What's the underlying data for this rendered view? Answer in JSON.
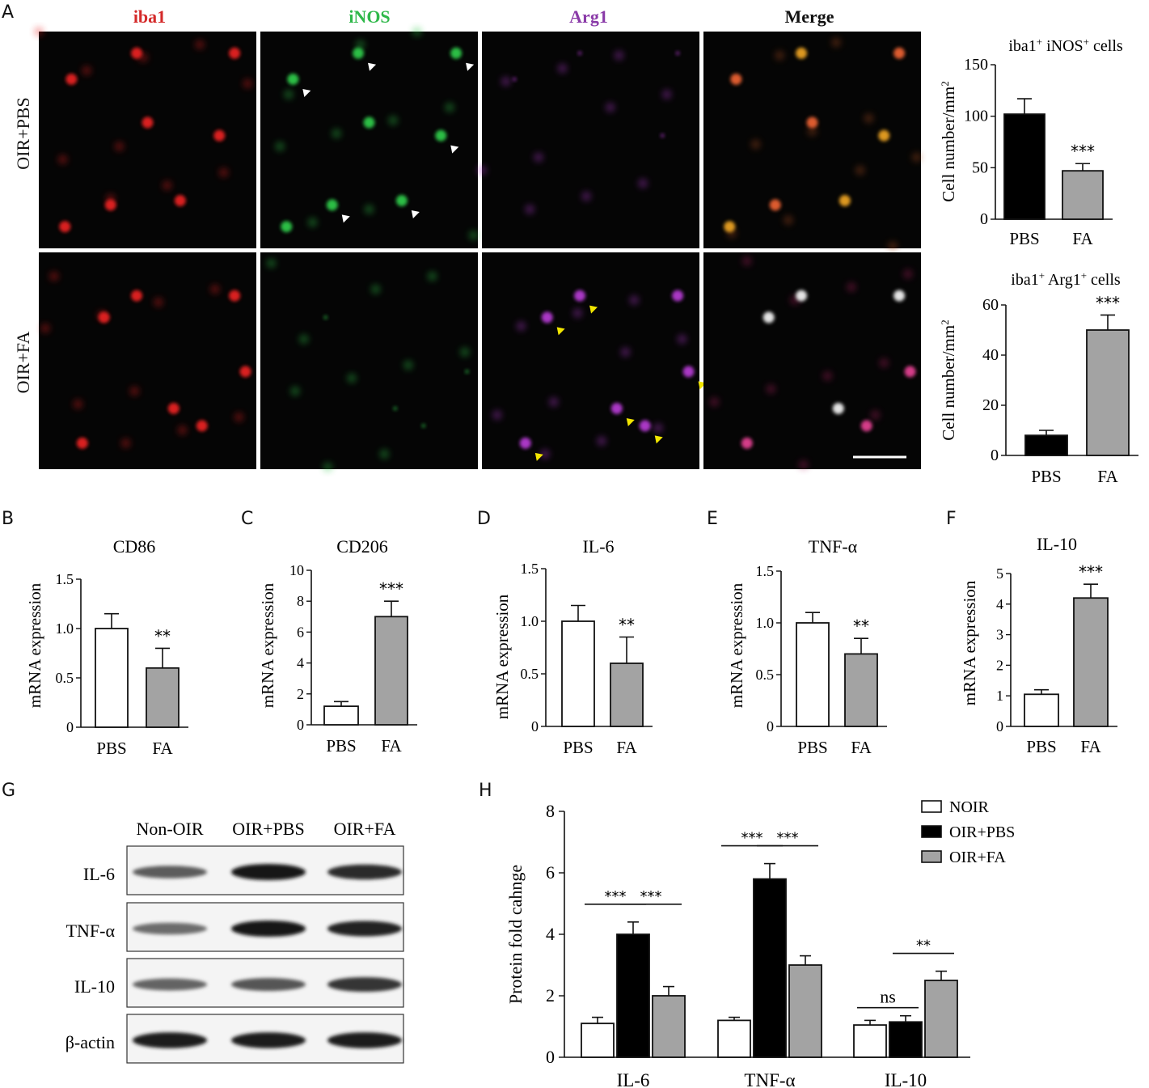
{
  "panel_letters": [
    "A",
    "B",
    "C",
    "D",
    "E",
    "F",
    "G",
    "H"
  ],
  "micro": {
    "column_labels": [
      {
        "text": "iba1",
        "color": "#d42a2a"
      },
      {
        "text": "iNOS",
        "color": "#2fb84a"
      },
      {
        "text": "Arg1",
        "color": "#8a3aa8"
      },
      {
        "text": "Merge",
        "color": "#111111"
      }
    ],
    "row_labels": [
      "OIR+PBS",
      "OIR+FA"
    ],
    "arrowhead_colors": {
      "iNOS": "#ffffff",
      "Arg1": "#f2e600"
    },
    "background": "#050505"
  },
  "blot": {
    "lanes": [
      "Non-OIR",
      "OIR+PBS",
      "OIR+FA"
    ],
    "rows": [
      {
        "label": "IL-6",
        "band_intensity": [
          0.55,
          1.0,
          0.85
        ]
      },
      {
        "label": "TNF-α",
        "band_intensity": [
          0.45,
          1.0,
          0.9
        ]
      },
      {
        "label": "IL-10",
        "band_intensity": [
          0.5,
          0.6,
          0.8
        ]
      },
      {
        "label": "β-actin",
        "band_intensity": [
          0.95,
          0.95,
          0.95
        ]
      }
    ]
  },
  "chart_data": [
    {
      "id": "A1",
      "type": "bar",
      "title_parts": [
        "iba1",
        "+",
        " iNOS",
        "+",
        " cells"
      ],
      "ylabel_main": "Cell number/mm",
      "ylabel_sup": "2",
      "categories": [
        "PBS",
        "FA"
      ],
      "values": [
        102,
        47
      ],
      "errors": [
        15,
        7
      ],
      "colors": [
        "#000000",
        "#a3a3a3"
      ],
      "ylim": [
        0,
        150
      ],
      "yticks": [
        0,
        50,
        100,
        150
      ],
      "ytick_labels": [
        "0",
        "50",
        "100",
        "150"
      ],
      "sig": [
        {
          "text": "***",
          "bar": 1
        }
      ]
    },
    {
      "id": "A2",
      "type": "bar",
      "title_parts": [
        "iba1",
        "+",
        " Arg1",
        "+",
        " cells"
      ],
      "ylabel_main": "Cell number/mm",
      "ylabel_sup": "2",
      "categories": [
        "PBS",
        "FA"
      ],
      "values": [
        8,
        50
      ],
      "errors": [
        2,
        6
      ],
      "colors": [
        "#000000",
        "#a3a3a3"
      ],
      "ylim": [
        0,
        60
      ],
      "yticks": [
        0,
        20,
        40,
        60
      ],
      "ytick_labels": [
        "0",
        "20",
        "40",
        "60"
      ],
      "sig": [
        {
          "text": "***",
          "bar": 1
        }
      ]
    },
    {
      "id": "B",
      "type": "bar",
      "title": "CD86",
      "ylabel": "mRNA expression",
      "categories": [
        "PBS",
        "FA"
      ],
      "values": [
        1.0,
        0.6
      ],
      "errors": [
        0.15,
        0.2
      ],
      "colors": [
        "#ffffff",
        "#a3a3a3"
      ],
      "ylim": [
        0,
        1.5
      ],
      "yticks": [
        0,
        0.5,
        1.0,
        1.5
      ],
      "ytick_labels": [
        "0",
        "0.5",
        "1.0",
        "1.5"
      ],
      "sig": [
        {
          "text": "**",
          "bar": 1
        }
      ]
    },
    {
      "id": "C",
      "type": "bar",
      "title": "CD206",
      "ylabel": "mRNA expression",
      "categories": [
        "PBS",
        "FA"
      ],
      "values": [
        1.2,
        7.0
      ],
      "errors": [
        0.3,
        1.0
      ],
      "colors": [
        "#ffffff",
        "#a3a3a3"
      ],
      "ylim": [
        0,
        10
      ],
      "yticks": [
        0,
        2,
        4,
        6,
        8,
        10
      ],
      "ytick_labels": [
        "0",
        "2",
        "4",
        "6",
        "8",
        "10"
      ],
      "sig": [
        {
          "text": "***",
          "bar": 1
        }
      ]
    },
    {
      "id": "D",
      "type": "bar",
      "title": "IL-6",
      "ylabel": "mRNA expression",
      "categories": [
        "PBS",
        "FA"
      ],
      "values": [
        1.0,
        0.6
      ],
      "errors": [
        0.15,
        0.25
      ],
      "colors": [
        "#ffffff",
        "#a3a3a3"
      ],
      "ylim": [
        0,
        1.5
      ],
      "yticks": [
        0,
        0.5,
        1.0,
        1.5
      ],
      "ytick_labels": [
        "0",
        "0.5",
        "1.0",
        "1.5"
      ],
      "sig": [
        {
          "text": "**",
          "bar": 1
        }
      ]
    },
    {
      "id": "E",
      "type": "bar",
      "title": "TNF-α",
      "ylabel": "mRNA expression",
      "categories": [
        "PBS",
        "FA"
      ],
      "values": [
        1.0,
        0.7
      ],
      "errors": [
        0.1,
        0.15
      ],
      "colors": [
        "#ffffff",
        "#a3a3a3"
      ],
      "ylim": [
        0,
        1.5
      ],
      "yticks": [
        0,
        0.5,
        1.0,
        1.5
      ],
      "ytick_labels": [
        "0",
        "0.5",
        "1.0",
        "1.5"
      ],
      "sig": [
        {
          "text": "**",
          "bar": 1
        }
      ]
    },
    {
      "id": "F",
      "type": "bar",
      "title": "IL-10",
      "ylabel": "mRNA expression",
      "categories": [
        "PBS",
        "FA"
      ],
      "values": [
        1.05,
        4.2
      ],
      "errors": [
        0.15,
        0.45
      ],
      "colors": [
        "#ffffff",
        "#a3a3a3"
      ],
      "ylim": [
        0,
        5
      ],
      "yticks": [
        0,
        1,
        2,
        3,
        4,
        5
      ],
      "ytick_labels": [
        "0",
        "1",
        "2",
        "3",
        "4",
        "5"
      ],
      "sig": [
        {
          "text": "***",
          "bar": 1
        }
      ]
    },
    {
      "id": "H",
      "type": "grouped-bar",
      "ylabel": "Protein fold cahnge",
      "categories": [
        "IL-6",
        "TNF-α",
        "IL-10"
      ],
      "series": [
        {
          "name": "NOIR",
          "values": [
            1.1,
            1.2,
            1.05
          ],
          "errors": [
            0.2,
            0.1,
            0.15
          ],
          "color": "#ffffff"
        },
        {
          "name": "OIR+PBS",
          "values": [
            4.0,
            5.8,
            1.15
          ],
          "errors": [
            0.4,
            0.5,
            0.2
          ],
          "color": "#000000"
        },
        {
          "name": "OIR+FA",
          "values": [
            2.0,
            3.0,
            2.5
          ],
          "errors": [
            0.3,
            0.3,
            0.3
          ],
          "color": "#a3a3a3"
        }
      ],
      "ylim": [
        0,
        8
      ],
      "yticks": [
        0,
        2,
        4,
        6,
        8
      ],
      "ytick_labels": [
        "0",
        "2",
        "4",
        "6",
        "8"
      ],
      "legend": "top-right",
      "comparisons": [
        {
          "group": 0,
          "from": 0,
          "to": 1,
          "text": "***"
        },
        {
          "group": 0,
          "from": 1,
          "to": 2,
          "text": "***"
        },
        {
          "group": 1,
          "from": 0,
          "to": 1,
          "text": "***"
        },
        {
          "group": 1,
          "from": 1,
          "to": 2,
          "text": "***"
        },
        {
          "group": 2,
          "from": 0,
          "to": 1,
          "text": "ns"
        },
        {
          "group": 2,
          "from": 1,
          "to": 2,
          "text": "**"
        }
      ]
    }
  ]
}
